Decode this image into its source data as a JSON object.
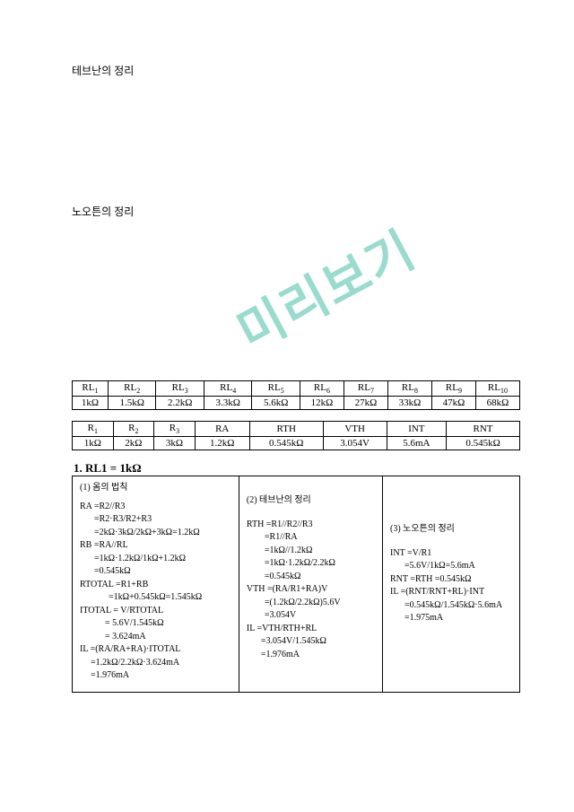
{
  "watermark_text": "미리보기",
  "heading_thevenin": "테브난의 정리",
  "heading_norton": "노오튼의 정리",
  "table1": {
    "headers": [
      "RL1",
      "RL2",
      "RL3",
      "RL4",
      "RL5",
      "RL6",
      "RL7",
      "RL8",
      "RL9",
      "RL10"
    ],
    "values": [
      "1kΩ",
      "1.5kΩ",
      "2.2kΩ",
      "3.3kΩ",
      "5.6kΩ",
      "12kΩ",
      "27kΩ",
      "33kΩ",
      "47kΩ",
      "68kΩ"
    ]
  },
  "table2": {
    "headers": [
      "R1",
      "R2",
      "R3",
      "RA",
      "RTH",
      "VTH",
      "INT",
      "RNT"
    ],
    "values": [
      "1kΩ",
      "2kΩ",
      "3kΩ",
      "1.2kΩ",
      "0.545kΩ",
      "3.054V",
      "5.6mA",
      "0.545kΩ"
    ]
  },
  "section_title": "1. RL1  =  1kΩ",
  "col1": {
    "heading": "(1) 옴의 법칙",
    "lines": [
      "RA =R2//R3",
      "    =R2·R3/R2+R3",
      "    =2kΩ·3kΩ/2kΩ+3kΩ=1.2kΩ",
      "RB =RA//RL",
      "    =1kΩ·1.2kΩ/1kΩ+1.2kΩ",
      "    =0.545kΩ",
      "RTOTAL =R1+RB",
      "        =1kΩ+0.545kΩ=1.545kΩ",
      "ITOTAL =  V/RTOTAL",
      "       =  5.6V/1.545kΩ",
      "       =  3.624mA",
      "IL =(RA/RA+RA)·ITOTAL",
      "   =1.2kΩ/2.2kΩ·3.624mA",
      "   =1.976mA"
    ]
  },
  "col2": {
    "heading": "(2) 테브난의 정리",
    "lines": [
      "RTH =R1//R2//R3",
      "     =R1//RA",
      "     =1kΩ//1.2kΩ",
      "     =1kΩ·1.2kΩ/2.2kΩ",
      "     =0.545kΩ",
      "VTH =(RA/R1+RA)V",
      "     =(1.2kΩ/2.2kΩ)5.6V",
      "     =3.054V",
      "IL  =VTH/RTH+RL",
      "    =3.054V/1.545kΩ",
      "    =1.976mA"
    ]
  },
  "col3": {
    "heading": "(3) 노오튼의 정리",
    "lines": [
      "INT =V/R1",
      "    =5.6V/1kΩ=5.6mA",
      "RNT =RTH =0.545kΩ",
      "IL  =(RNT/RNT+RL)·INT",
      "    =0.545kΩ/1.545kΩ·5.6mA",
      "    =1.975mA"
    ]
  }
}
